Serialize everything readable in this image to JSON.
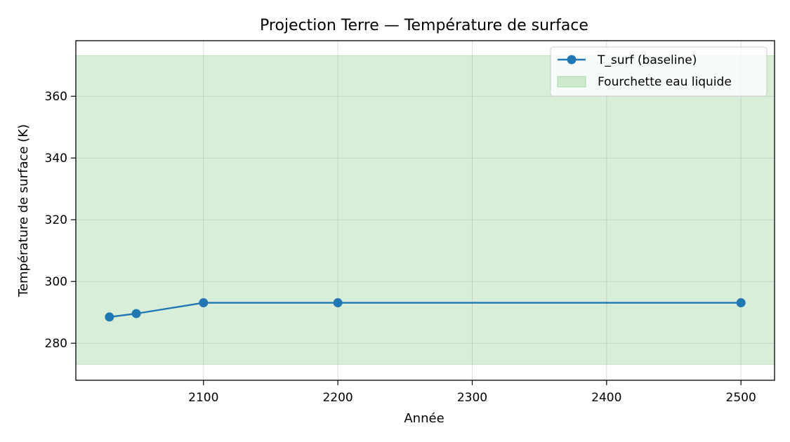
{
  "chart_data": {
    "type": "line",
    "title": "Projection Terre — Température de surface",
    "xlabel": "Année",
    "ylabel": "Température de surface (K)",
    "xlim": [
      2005,
      2525
    ],
    "ylim": [
      268,
      378
    ],
    "xticks": [
      2100,
      2200,
      2300,
      2400,
      2500
    ],
    "yticks": [
      280,
      300,
      320,
      340,
      360
    ],
    "grid": true,
    "legend_position": "top-right",
    "series": [
      {
        "name": "T_surf (baseline)",
        "color": "#1f77b4",
        "marker": "circle",
        "x": [
          2030,
          2050,
          2100,
          2200,
          2500
        ],
        "y": [
          288.5,
          289.6,
          293.1,
          293.1,
          293.1
        ]
      }
    ],
    "bands": [
      {
        "name": "Fourchette eau liquide",
        "color": "#2ca02c",
        "opacity": 0.18,
        "y_range": [
          273.15,
          373.15
        ]
      }
    ]
  }
}
